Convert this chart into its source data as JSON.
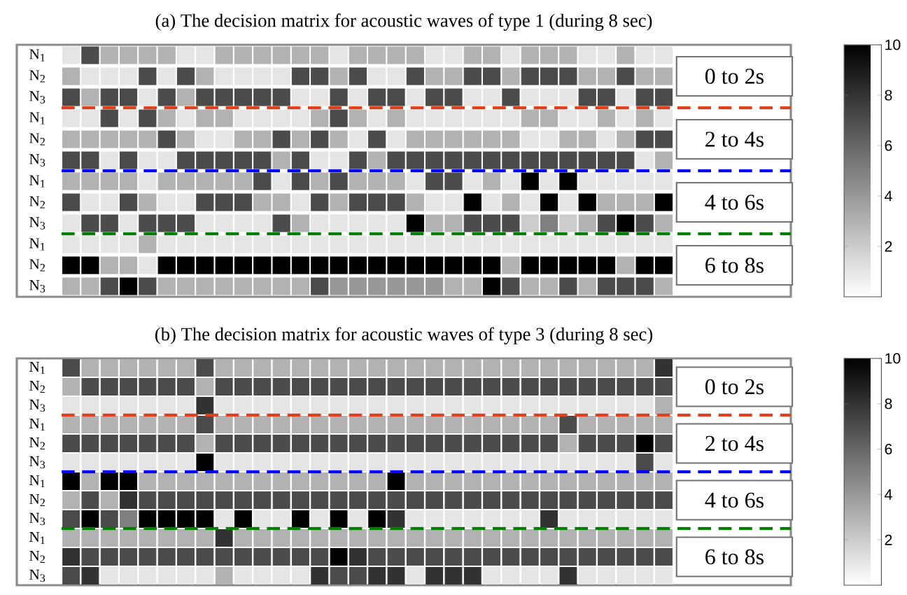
{
  "chart_data": [
    {
      "type": "heatmap",
      "title": "(a) The decision matrix for acoustic waves of type 1 (during 8 sec)",
      "categories": [
        null,
        null,
        null,
        null,
        null,
        null,
        null,
        null,
        null,
        null,
        null,
        null,
        null,
        null,
        null,
        null,
        null,
        null,
        null,
        null,
        null,
        null,
        null,
        null,
        null,
        null,
        null,
        null,
        null,
        null,
        null,
        null
      ],
      "y_categories": [
        "N$_{1}$",
        "N$_{2}$",
        "N$_{3}$",
        "N$_{1}$",
        "N$_{2}$",
        "N$_{3}$",
        "N$_{1}$",
        "N$_{2}$",
        "N$_{3}$",
        "N$_{1}$",
        "N$_{2}$",
        "N$_{3}$"
      ],
      "cells": [
        [
          1,
          7,
          3,
          3,
          3,
          3,
          1,
          1,
          3,
          3,
          3,
          3,
          3,
          3,
          1,
          3,
          3,
          3,
          3,
          1,
          1,
          3,
          3,
          1,
          3,
          3,
          3,
          1,
          1,
          3,
          1,
          1
        ],
        [
          3,
          1,
          1,
          1,
          7,
          1,
          7,
          3,
          1,
          1,
          1,
          1,
          7,
          7,
          3,
          7,
          1,
          1,
          7,
          3,
          3,
          7,
          7,
          3,
          7,
          7,
          7,
          3,
          3,
          7,
          3,
          3
        ],
        [
          7,
          3,
          7,
          7,
          1,
          7,
          3,
          7,
          7,
          7,
          7,
          7,
          1,
          1,
          7,
          1,
          7,
          7,
          1,
          7,
          7,
          1,
          1,
          7,
          1,
          1,
          1,
          7,
          7,
          1,
          7,
          7
        ],
        [
          1,
          1,
          7,
          1,
          7,
          3,
          1,
          3,
          3,
          1,
          1,
          1,
          1,
          3,
          7,
          3,
          1,
          3,
          1,
          1,
          1,
          1,
          1,
          1,
          3,
          3,
          1,
          1,
          3,
          1,
          3,
          1
        ],
        [
          3,
          3,
          3,
          3,
          3,
          7,
          3,
          1,
          1,
          3,
          3,
          7,
          3,
          7,
          3,
          1,
          7,
          1,
          3,
          3,
          3,
          3,
          3,
          3,
          1,
          1,
          3,
          3,
          1,
          3,
          7,
          7
        ],
        [
          7,
          7,
          1,
          7,
          1,
          1,
          7,
          7,
          7,
          7,
          7,
          3,
          7,
          1,
          1,
          7,
          3,
          7,
          7,
          7,
          7,
          7,
          7,
          7,
          7,
          7,
          7,
          7,
          7,
          7,
          1,
          3
        ],
        [
          3,
          3,
          3,
          3,
          1,
          3,
          3,
          3,
          3,
          3,
          7,
          1,
          7,
          3,
          7,
          3,
          3,
          3,
          1,
          7,
          7,
          1,
          3,
          1,
          10,
          1,
          10,
          1,
          1,
          1,
          1,
          1
        ],
        [
          7,
          1,
          1,
          7,
          3,
          1,
          1,
          7,
          7,
          7,
          3,
          3,
          1,
          7,
          3,
          7,
          7,
          7,
          3,
          1,
          1,
          10,
          1,
          3,
          1,
          10,
          1,
          10,
          3,
          3,
          3,
          10
        ],
        [
          1,
          7,
          7,
          1,
          7,
          7,
          7,
          1,
          1,
          1,
          1,
          7,
          3,
          1,
          1,
          1,
          1,
          1,
          10,
          3,
          3,
          7,
          7,
          7,
          2,
          5,
          2,
          3,
          7,
          10,
          7,
          3
        ],
        [
          1,
          1,
          1,
          1,
          3,
          1,
          1,
          1,
          1,
          1,
          1,
          1,
          1,
          1,
          1,
          1,
          1,
          1,
          1,
          1,
          1,
          1,
          1,
          1,
          1,
          1,
          1,
          1,
          1,
          1,
          1,
          1
        ],
        [
          10,
          10,
          3,
          3,
          1,
          10,
          10,
          10,
          10,
          10,
          10,
          10,
          10,
          10,
          10,
          10,
          10,
          10,
          10,
          10,
          10,
          10,
          10,
          3,
          10,
          10,
          10,
          10,
          10,
          3,
          10,
          10
        ],
        [
          3,
          3,
          7,
          10,
          7,
          3,
          3,
          3,
          3,
          3,
          3,
          3,
          3,
          7,
          4,
          4,
          4,
          4,
          4,
          4,
          3,
          3,
          10,
          7,
          3,
          3,
          7,
          3,
          7,
          7,
          7,
          3
        ]
      ],
      "clim": [
        0,
        10
      ],
      "cticks": [
        2,
        4,
        6,
        8,
        10
      ],
      "annotations": [
        "0 to 2s",
        "2 to 4s",
        "4 to 6s",
        "6 to 8s"
      ]
    },
    {
      "type": "heatmap",
      "title": "(b) The decision matrix for acoustic waves of type 3 (during 8 sec)",
      "categories": [
        null,
        null,
        null,
        null,
        null,
        null,
        null,
        null,
        null,
        null,
        null,
        null,
        null,
        null,
        null,
        null,
        null,
        null,
        null,
        null,
        null,
        null,
        null,
        null,
        null,
        null,
        null,
        null,
        null,
        null,
        null,
        null
      ],
      "y_categories": [
        "N$_{1}$",
        "N$_{2}$",
        "N$_{3}$",
        "N$_{1}$",
        "N$_{2}$",
        "N$_{3}$",
        "N$_{1}$",
        "N$_{2}$",
        "N$_{3}$",
        "N$_{1}$",
        "N$_{2}$",
        "N$_{3}$"
      ],
      "cells": [
        [
          7,
          3,
          3,
          3,
          3,
          3,
          3,
          7,
          3,
          3,
          3,
          3,
          3,
          3,
          3,
          3,
          3,
          3,
          3,
          3,
          3,
          3,
          3,
          3,
          3,
          3,
          3,
          3,
          3,
          3,
          3,
          8
        ],
        [
          3,
          7,
          7,
          7,
          7,
          7,
          7,
          3,
          7,
          7,
          7,
          7,
          7,
          7,
          7,
          7,
          7,
          7,
          7,
          7,
          7,
          7,
          7,
          7,
          7,
          7,
          7,
          7,
          7,
          7,
          7,
          7
        ],
        [
          1,
          1,
          1,
          1,
          1,
          1,
          1,
          8,
          1,
          1,
          1,
          1,
          1,
          1,
          1,
          1,
          1,
          1,
          1,
          1,
          1,
          1,
          1,
          1,
          1,
          1,
          1,
          1,
          1,
          1,
          1,
          3
        ],
        [
          3,
          3,
          3,
          3,
          3,
          3,
          3,
          7,
          3,
          3,
          3,
          3,
          3,
          3,
          3,
          3,
          3,
          3,
          3,
          3,
          3,
          3,
          3,
          3,
          3,
          3,
          7,
          3,
          3,
          3,
          3,
          3
        ],
        [
          7,
          7,
          7,
          7,
          7,
          7,
          7,
          3,
          7,
          7,
          7,
          7,
          7,
          7,
          7,
          7,
          7,
          7,
          7,
          7,
          7,
          7,
          7,
          7,
          7,
          7,
          3,
          7,
          7,
          7,
          10,
          7
        ],
        [
          1,
          1,
          1,
          1,
          1,
          1,
          1,
          10,
          1,
          1,
          1,
          1,
          1,
          1,
          1,
          1,
          1,
          1,
          1,
          1,
          1,
          1,
          1,
          1,
          1,
          1,
          1,
          1,
          1,
          1,
          7,
          1
        ],
        [
          10,
          3,
          10,
          10,
          3,
          3,
          3,
          3,
          3,
          3,
          3,
          3,
          3,
          3,
          3,
          3,
          3,
          10,
          3,
          3,
          3,
          3,
          3,
          3,
          3,
          3,
          3,
          3,
          3,
          3,
          3,
          3
        ],
        [
          3,
          7,
          3,
          8,
          7,
          7,
          7,
          7,
          7,
          7,
          7,
          7,
          7,
          7,
          7,
          7,
          7,
          7,
          7,
          7,
          7,
          7,
          7,
          7,
          7,
          7,
          7,
          7,
          7,
          7,
          7,
          7
        ],
        [
          7,
          10,
          7,
          5,
          10,
          10,
          10,
          10,
          1,
          10,
          1,
          1,
          10,
          1,
          10,
          1,
          10,
          8,
          1,
          1,
          1,
          1,
          1,
          1,
          1,
          8,
          1,
          1,
          1,
          1,
          1,
          1
        ],
        [
          3,
          3,
          3,
          3,
          3,
          3,
          3,
          3,
          8,
          3,
          3,
          3,
          3,
          3,
          3,
          3,
          3,
          3,
          3,
          3,
          3,
          3,
          3,
          3,
          3,
          3,
          3,
          3,
          3,
          3,
          3,
          3
        ],
        [
          8,
          7,
          7,
          7,
          7,
          7,
          7,
          7,
          7,
          7,
          7,
          7,
          7,
          7,
          10,
          8,
          7,
          7,
          7,
          7,
          7,
          7,
          7,
          7,
          7,
          7,
          7,
          7,
          7,
          7,
          7,
          7
        ],
        [
          7,
          8,
          1,
          1,
          1,
          1,
          1,
          1,
          3,
          1,
          1,
          1,
          1,
          8,
          7,
          7,
          8,
          8,
          1,
          8,
          8,
          8,
          1,
          1,
          1,
          1,
          8,
          1,
          1,
          1,
          1,
          1
        ]
      ],
      "clim": [
        0,
        10
      ],
      "cticks": [
        2,
        4,
        6,
        8,
        10
      ],
      "annotations": [
        "0 to 2s",
        "2 to 4s",
        "4 to 6s",
        "6 to 8s"
      ]
    }
  ]
}
